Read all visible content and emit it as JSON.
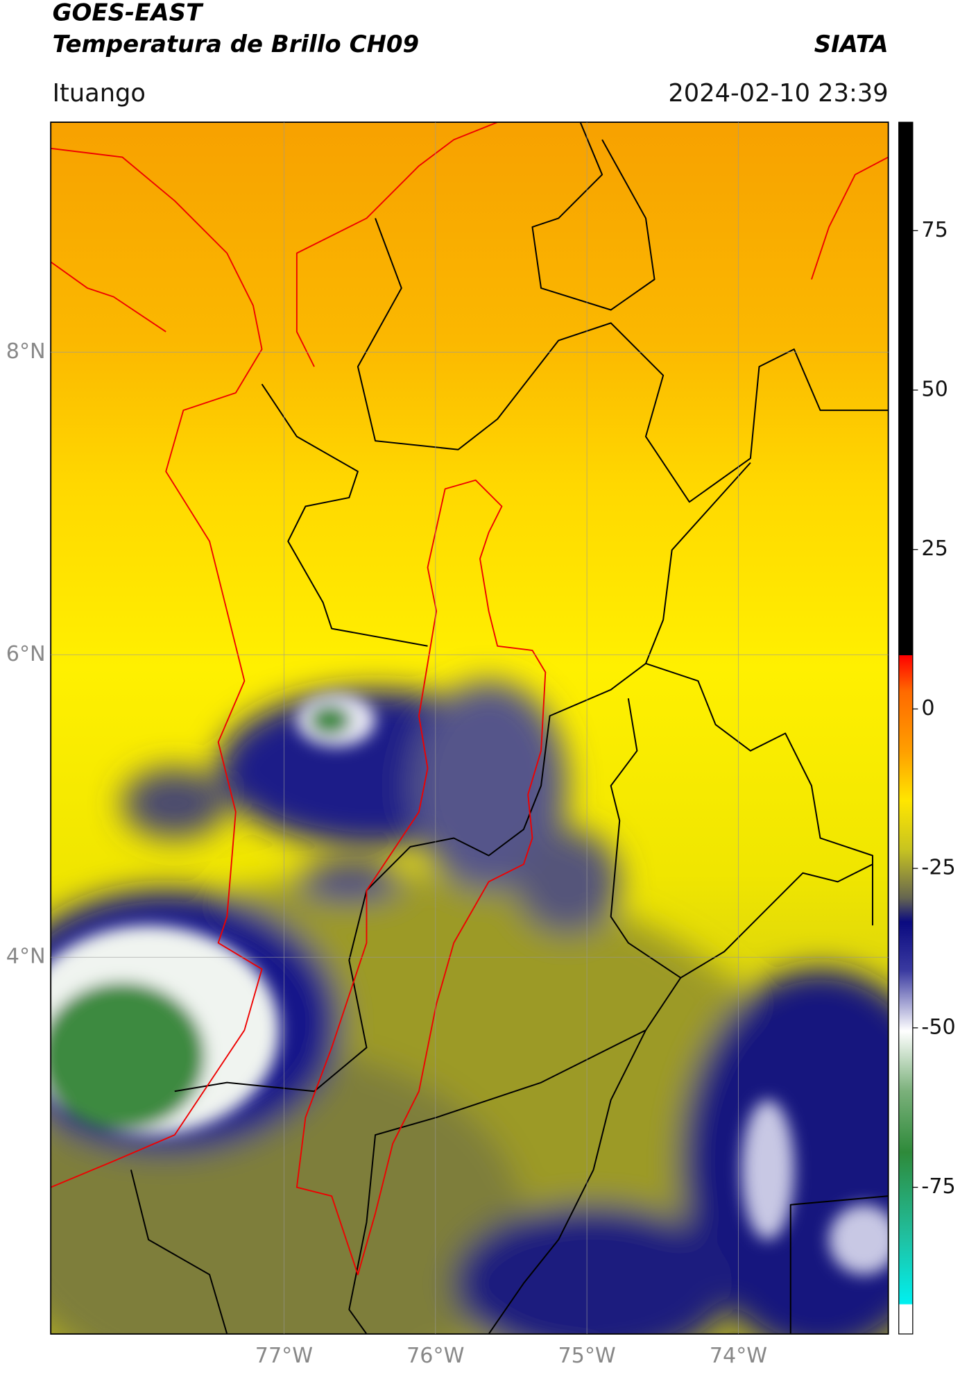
{
  "header": {
    "title": "GOES-EAST",
    "subtitle": "Temperatura de Brillo CH09",
    "source": "SIATA",
    "region": "Ituango",
    "datetime": "2024-02-10 23:39"
  },
  "map": {
    "xlim": [
      -78.54,
      -73.01
    ],
    "ylim": [
      1.51,
      9.52
    ],
    "xticks": [
      {
        "value": -77,
        "label": "77°W"
      },
      {
        "value": -76,
        "label": "76°W"
      },
      {
        "value": -75,
        "label": "75°W"
      },
      {
        "value": -74,
        "label": "74°W"
      }
    ],
    "yticks": [
      {
        "value": 4,
        "label": "4°N"
      },
      {
        "value": 6,
        "label": "6°N"
      },
      {
        "value": 8,
        "label": "8°N"
      }
    ]
  },
  "colorbar": {
    "range": [
      -98,
      92
    ],
    "ticks": [
      -75,
      -50,
      -25,
      0,
      25,
      50,
      75
    ]
  }
}
